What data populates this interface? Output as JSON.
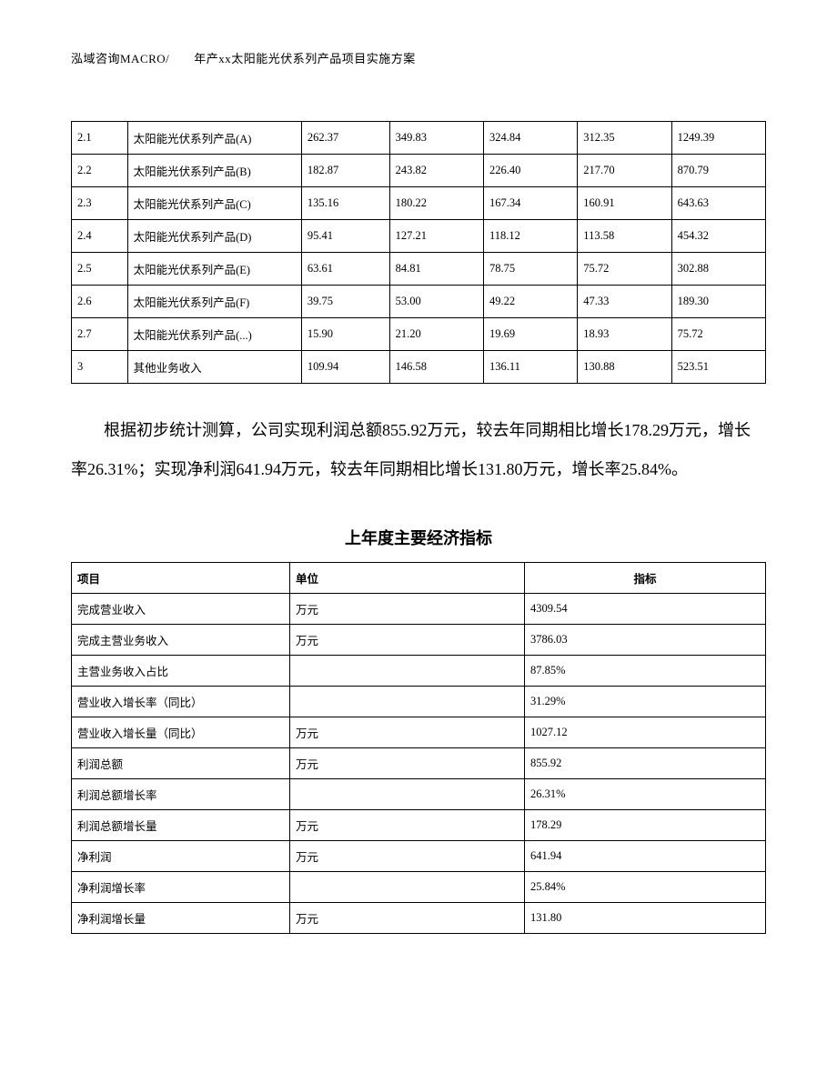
{
  "header": "泓域咨询MACRO/　　年产xx太阳能光伏系列产品项目实施方案",
  "table1": {
    "rows": [
      [
        "2.1",
        "太阳能光伏系列产品(A)",
        "262.37",
        "349.83",
        "324.84",
        "312.35",
        "1249.39"
      ],
      [
        "2.2",
        "太阳能光伏系列产品(B)",
        "182.87",
        "243.82",
        "226.40",
        "217.70",
        "870.79"
      ],
      [
        "2.3",
        "太阳能光伏系列产品(C)",
        "135.16",
        "180.22",
        "167.34",
        "160.91",
        "643.63"
      ],
      [
        "2.4",
        "太阳能光伏系列产品(D)",
        "95.41",
        "127.21",
        "118.12",
        "113.58",
        "454.32"
      ],
      [
        "2.5",
        "太阳能光伏系列产品(E)",
        "63.61",
        "84.81",
        "78.75",
        "75.72",
        "302.88"
      ],
      [
        "2.6",
        "太阳能光伏系列产品(F)",
        "39.75",
        "53.00",
        "49.22",
        "47.33",
        "189.30"
      ],
      [
        "2.7",
        "太阳能光伏系列产品(...)",
        "15.90",
        "21.20",
        "19.69",
        "18.93",
        "75.72"
      ],
      [
        "3",
        "其他业务收入",
        "109.94",
        "146.58",
        "136.11",
        "130.88",
        "523.51"
      ]
    ]
  },
  "paragraph": "根据初步统计测算，公司实现利润总额855.92万元，较去年同期相比增长178.29万元，增长率26.31%；实现净利润641.94万元，较去年同期相比增长131.80万元，增长率25.84%。",
  "table2": {
    "title": "上年度主要经济指标",
    "headers": [
      "项目",
      "单位",
      "指标"
    ],
    "rows": [
      [
        "完成营业收入",
        "万元",
        "4309.54"
      ],
      [
        "完成主营业务收入",
        "万元",
        "3786.03"
      ],
      [
        "主营业务收入占比",
        "",
        "87.85%"
      ],
      [
        "营业收入增长率（同比）",
        "",
        "31.29%"
      ],
      [
        "营业收入增长量（同比）",
        "万元",
        "1027.12"
      ],
      [
        "利润总额",
        "万元",
        "855.92"
      ],
      [
        "利润总额增长率",
        "",
        "26.31%"
      ],
      [
        "利润总额增长量",
        "万元",
        "178.29"
      ],
      [
        "净利润",
        "万元",
        "641.94"
      ],
      [
        "净利润增长率",
        "",
        "25.84%"
      ],
      [
        "净利润增长量",
        "万元",
        "131.80"
      ]
    ]
  }
}
